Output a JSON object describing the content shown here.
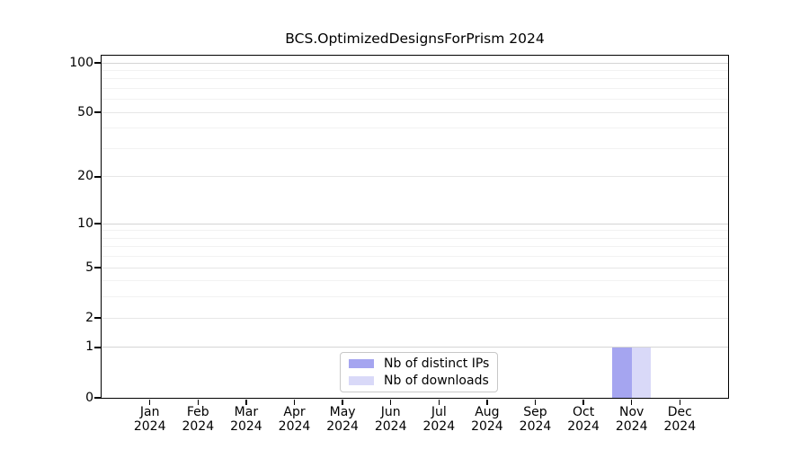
{
  "chart_data": {
    "type": "bar",
    "title": "BCS.OptimizedDesignsForPrism 2024",
    "x": {
      "categories": [
        "Jan",
        "Feb",
        "Mar",
        "Apr",
        "May",
        "Jun",
        "Jul",
        "Aug",
        "Sep",
        "Oct",
        "Nov",
        "Dec"
      ],
      "year_label": "2024"
    },
    "y": {
      "ticks": [
        0,
        1,
        2,
        5,
        10,
        20,
        50,
        100
      ],
      "scale": "log1p",
      "lim": [
        0,
        100
      ],
      "grid": "on"
    },
    "series": [
      {
        "name": "Nb of distinct IPs",
        "color": "#a5a5f0",
        "values": [
          0,
          0,
          0,
          0,
          0,
          0,
          0,
          0,
          0,
          0,
          1,
          0
        ]
      },
      {
        "name": "Nb of downloads",
        "color": "#d9d9f8",
        "values": [
          0,
          0,
          0,
          0,
          0,
          0,
          0,
          0,
          0,
          0,
          1,
          0
        ]
      }
    ],
    "legend": {
      "position": "bottom-center"
    }
  }
}
